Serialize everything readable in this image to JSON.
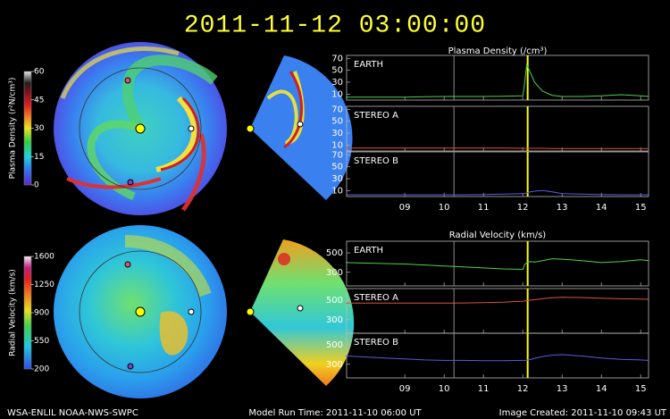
{
  "title": "2011-11-12 03:00:00",
  "footer": {
    "credit": "WSA-ENLIL NOAA-NWS-SWPC",
    "model_run": "Model Run Time: 2011-11-10 06:00 UT",
    "image_created": "Image Created: 2011-11-10 09:43 UT"
  },
  "colorbars": [
    {
      "label": "Plasma Density (r²N/cm³)",
      "lim": [
        0,
        60
      ],
      "ticks": [
        60,
        45,
        30,
        15,
        0
      ]
    },
    {
      "label": "Radial Velocity (km/s)",
      "lim": [
        200,
        1600
      ],
      "ticks": [
        1600,
        1250,
        900,
        550,
        200
      ]
    }
  ],
  "chart_data": [
    {
      "type": "line",
      "title": "Plasma Density (/cm³)",
      "x": [
        7.5,
        8,
        8.5,
        9,
        9.5,
        10,
        10.5,
        11,
        11.5,
        12,
        12.05,
        12.1,
        12.2,
        12.3,
        12.5,
        12.75,
        13,
        13.5,
        14,
        14.5,
        15,
        15.2
      ],
      "xlim": [
        7.52,
        15.2
      ],
      "xticks": [
        {
          "value": 9,
          "label": "09"
        },
        10,
        11,
        12,
        13,
        14,
        15
      ],
      "ylim": [
        0,
        75
      ],
      "yticks": [
        70,
        50,
        30,
        10
      ],
      "vlines": [
        {
          "value": 10.25,
          "color": "#8a8a8a"
        },
        {
          "value": 12.125,
          "color": "#ffff00"
        }
      ],
      "series": [
        {
          "name": "EARTH",
          "color": "#4cd34c",
          "values": [
            5,
            5,
            5,
            5,
            5.5,
            6,
            6,
            6,
            6.5,
            7,
            30,
            60,
            45,
            30,
            15,
            8,
            6,
            6,
            7,
            9,
            7,
            6
          ]
        },
        {
          "name": "STEREO A",
          "color": "#d9553a",
          "values": [
            5,
            5,
            5,
            5,
            5,
            5,
            5,
            5,
            5,
            4.5,
            4.5,
            4.5,
            4.5,
            4.5,
            4.5,
            4,
            4,
            4,
            4,
            4,
            4,
            4
          ]
        },
        {
          "name": "STEREO B",
          "color": "#5a5ae6",
          "values": [
            3,
            3,
            3,
            3,
            3,
            3,
            3,
            3.5,
            4,
            5,
            5,
            6,
            8,
            9,
            10,
            8,
            5,
            4,
            3.5,
            3,
            3,
            3
          ]
        }
      ]
    },
    {
      "type": "line",
      "title": "Radial Velocity (km/s)",
      "x": [
        7.5,
        8,
        8.5,
        9,
        9.5,
        10,
        10.5,
        11,
        11.5,
        12,
        12.05,
        12.1,
        12.2,
        12.3,
        12.5,
        12.75,
        13,
        13.5,
        14,
        14.5,
        15,
        15.2
      ],
      "xlim": [
        7.52,
        15.2
      ],
      "xticks": [
        {
          "value": 9,
          "label": "09"
        },
        10,
        11,
        12,
        13,
        14,
        15
      ],
      "ylim": [
        160,
        620
      ],
      "yticks": [
        500,
        300
      ],
      "vlines": [
        {
          "value": 10.25,
          "color": "#8a8a8a"
        },
        {
          "value": 12.125,
          "color": "#ffff00"
        }
      ],
      "series": [
        {
          "name": "EARTH",
          "color": "#4cd34c",
          "values": [
            400,
            395,
            390,
            385,
            375,
            365,
            355,
            345,
            335,
            330,
            380,
            400,
            410,
            405,
            420,
            440,
            435,
            420,
            400,
            410,
            430,
            420
          ]
        },
        {
          "name": "STEREO A",
          "color": "#d9553a",
          "values": [
            470,
            470,
            470,
            470,
            470,
            470,
            472,
            475,
            480,
            490,
            492,
            495,
            500,
            505,
            515,
            525,
            530,
            528,
            520,
            515,
            512,
            510
          ]
        },
        {
          "name": "STEREO B",
          "color": "#5a5ae6",
          "values": [
            385,
            375,
            365,
            355,
            345,
            340,
            340,
            338,
            338,
            340,
            340,
            342,
            350,
            360,
            380,
            395,
            400,
            385,
            365,
            350,
            345,
            340
          ]
        }
      ]
    }
  ]
}
